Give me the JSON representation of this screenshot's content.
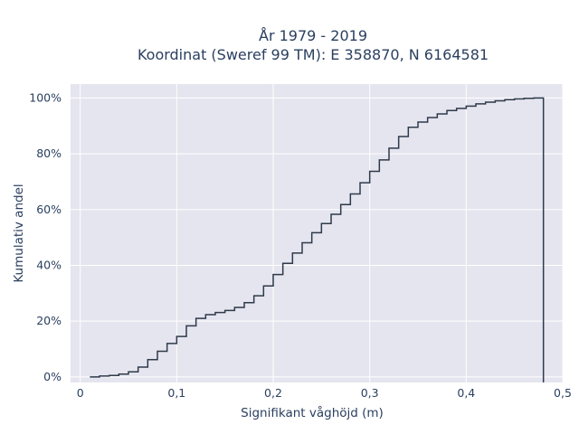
{
  "chart_data": {
    "type": "line",
    "title": "År 1979 - 2019",
    "subtitle": "Koordinat (Sweref 99 TM): E 358870, N 6164581",
    "xlabel": "Signifikant våghöjd (m)",
    "ylabel": "Kumulativ andel",
    "xlim": [
      -0.01,
      0.5
    ],
    "ylim": [
      -0.02,
      1.05
    ],
    "x_ticks": [
      0,
      0.1,
      0.2,
      0.3,
      0.4,
      0.5
    ],
    "x_tick_labels": [
      "0",
      "0,1",
      "0,2",
      "0,3",
      "0,4",
      "0,5"
    ],
    "y_ticks": [
      0,
      0.2,
      0.4,
      0.6,
      0.8,
      1.0
    ],
    "y_tick_labels": [
      "0%",
      "20%",
      "40%",
      "60%",
      "80%",
      "100%"
    ],
    "grid": true,
    "line_color": "#2f3a4a",
    "background_color": "#e5e5ef",
    "series": [
      {
        "step": "post",
        "x": [
          0.01,
          0.02,
          0.03,
          0.04,
          0.05,
          0.06,
          0.07,
          0.08,
          0.09,
          0.1,
          0.11,
          0.12,
          0.13,
          0.14,
          0.15,
          0.16,
          0.17,
          0.18,
          0.19,
          0.2,
          0.21,
          0.22,
          0.23,
          0.24,
          0.25,
          0.26,
          0.27,
          0.28,
          0.29,
          0.3,
          0.31,
          0.32,
          0.33,
          0.34,
          0.35,
          0.36,
          0.37,
          0.38,
          0.39,
          0.4,
          0.41,
          0.42,
          0.43,
          0.44,
          0.45,
          0.46,
          0.47,
          0.48
        ],
        "y": [
          0.0,
          0.003,
          0.005,
          0.01,
          0.018,
          0.035,
          0.062,
          0.092,
          0.12,
          0.145,
          0.183,
          0.21,
          0.223,
          0.231,
          0.238,
          0.249,
          0.266,
          0.291,
          0.326,
          0.367,
          0.407,
          0.444,
          0.481,
          0.517,
          0.55,
          0.583,
          0.618,
          0.656,
          0.696,
          0.737,
          0.778,
          0.82,
          0.862,
          0.895,
          0.914,
          0.93,
          0.943,
          0.955,
          0.963,
          0.971,
          0.979,
          0.985,
          0.99,
          0.994,
          0.997,
          0.999,
          1.0,
          1.0
        ]
      }
    ]
  }
}
